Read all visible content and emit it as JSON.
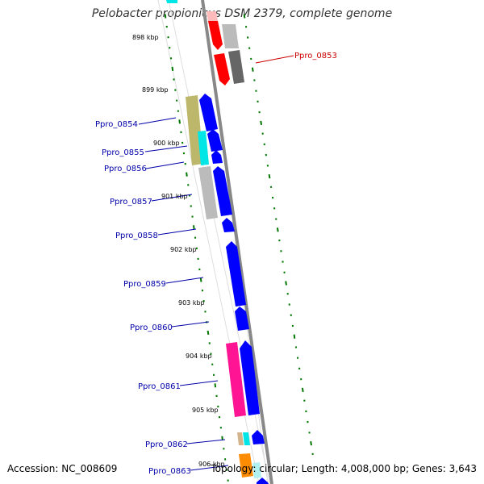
{
  "title": "Pelobacter propionicus DSM 2379, complete genome",
  "footer": {
    "accession": "Accession: NC_008609",
    "topology": "Topology: circular; Length: 4,008,000 bp; Genes: 3,643"
  },
  "ticks": [
    "898 kbp",
    "899 kbp",
    "900 kbp",
    "901 kbp",
    "902 kbp",
    "903 kbp",
    "904 kbp",
    "905 kbp",
    "906 kbp"
  ],
  "genes": [
    "Ppro_0853",
    "Ppro_0854",
    "Ppro_0855",
    "Ppro_0856",
    "Ppro_0857",
    "Ppro_0858",
    "Ppro_0859",
    "Ppro_0860",
    "Ppro_0861",
    "Ppro_0862",
    "Ppro_0863"
  ],
  "colors": {
    "forward_label": "#0000aa",
    "reverse_label": "#cc0000",
    "tick": "#007700",
    "backbone": "#888888",
    "cds_forward": "#0000ff",
    "cds_reverse": "#ff0000"
  }
}
